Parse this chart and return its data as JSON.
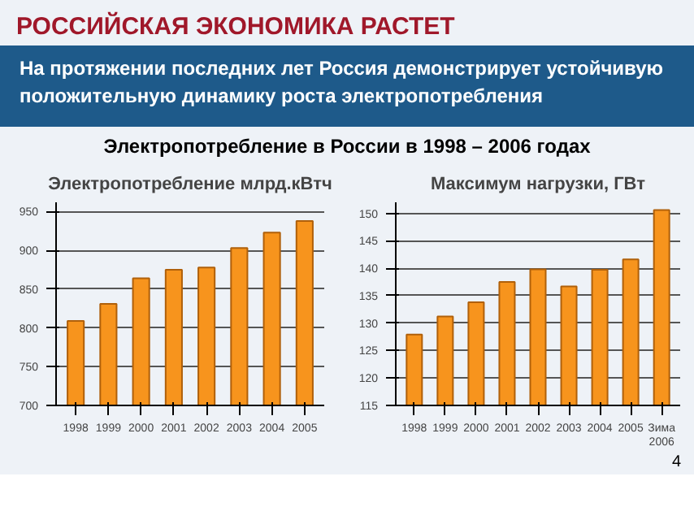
{
  "chart_data": [
    {
      "type": "bar",
      "title": "Электропотребление млрд.кВтч",
      "annotations": [
        "РОССИЙСКАЯ ЭКОНОМИКА РАСТЕТ",
        "На протяжении последних лет Россия демонстрирует устойчивую положительную динамику роста электропотребления",
        "Электропотребление в России в 1998 – 2006 годах"
      ],
      "categories": [
        "1998",
        "1999",
        "2000",
        "2001",
        "2002",
        "2003",
        "2004",
        "2005"
      ],
      "values": [
        809,
        831,
        864,
        875,
        878,
        903,
        923,
        938
      ],
      "color": "#f7941d",
      "ylim": [
        700,
        962
      ],
      "yticks": [
        700,
        750,
        800,
        850,
        900,
        950
      ],
      "grid": "y"
    },
    {
      "type": "bar",
      "title": "Максимум нагрузки, ГВт",
      "annotations": [
        "4"
      ],
      "categories": [
        "1998",
        "1999",
        "2000",
        "2001",
        "2002",
        "2003",
        "2004",
        "2005",
        "Зима 2006"
      ],
      "values": [
        127.9,
        131.2,
        133.8,
        137.5,
        139.8,
        136.7,
        139.7,
        141.6,
        150.6
      ],
      "color": "#f7941d",
      "ylim": [
        115,
        152
      ],
      "yticks": [
        115,
        120,
        125,
        130,
        135,
        140,
        145,
        150
      ],
      "grid": "y"
    }
  ]
}
